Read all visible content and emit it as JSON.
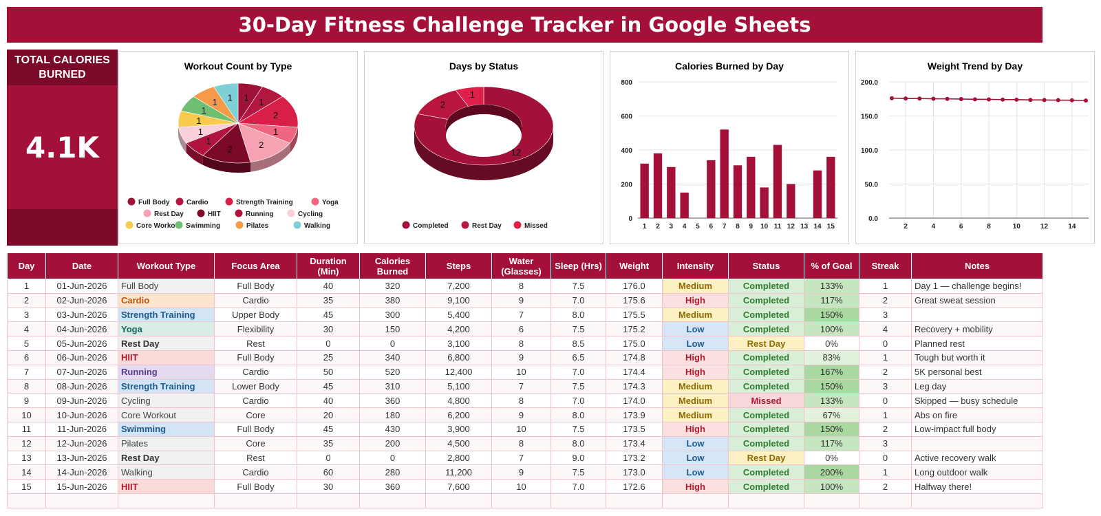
{
  "title": "30-Day Fitness Challenge Tracker in Google Sheets",
  "kpi": {
    "label": "TOTAL CALORIES BURNED",
    "value": "4.1K"
  },
  "colors": {
    "brand": "#a31139",
    "brand_dark": "#7a0a28"
  },
  "chart_data": [
    {
      "type": "pie",
      "title": "Workout Count by Type",
      "slices": [
        {
          "name": "Full Body",
          "value": 1,
          "color": "#9e1238"
        },
        {
          "name": "Cardio",
          "value": 1,
          "color": "#b3163e"
        },
        {
          "name": "Strength Training",
          "value": 2,
          "color": "#d81f48"
        },
        {
          "name": "Yoga",
          "value": 1,
          "color": "#ee6680"
        },
        {
          "name": "Rest Day",
          "value": 2,
          "color": "#f5a3b3"
        },
        {
          "name": "HIIT",
          "value": 2,
          "color": "#7a0a28"
        },
        {
          "name": "Running",
          "value": 1,
          "color": "#b0143c"
        },
        {
          "name": "Cycling",
          "value": 1,
          "color": "#f9d0d9"
        },
        {
          "name": "Core Workout",
          "value": 1,
          "color": "#f7cb4d"
        },
        {
          "name": "Swimming",
          "value": 1,
          "color": "#6fbf73"
        },
        {
          "name": "Pilates",
          "value": 1,
          "color": "#f59a48"
        },
        {
          "name": "Walking",
          "value": 1,
          "color": "#7fd0d4"
        }
      ]
    },
    {
      "type": "pie",
      "title": "Days by Status",
      "slices": [
        {
          "name": "Completed",
          "value": 12,
          "color": "#a31139"
        },
        {
          "name": "Rest Day",
          "value": 2,
          "color": "#b8163f"
        },
        {
          "name": "Missed",
          "value": 1,
          "color": "#e01e4a"
        }
      ]
    },
    {
      "type": "bar",
      "title": "Calories Burned by Day",
      "categories": [
        "1",
        "2",
        "3",
        "4",
        "5",
        "6",
        "7",
        "8",
        "9",
        "10",
        "11",
        "12",
        "13",
        "14",
        "15"
      ],
      "values": [
        320,
        380,
        300,
        150,
        0,
        340,
        520,
        310,
        360,
        180,
        430,
        200,
        0,
        280,
        360
      ],
      "ylim": [
        0,
        800
      ],
      "yticks": [
        "0",
        "200",
        "400",
        "600",
        "800"
      ],
      "color": "#a31139"
    },
    {
      "type": "line",
      "title": "Weight Trend by Day",
      "x": [
        1,
        2,
        3,
        4,
        5,
        6,
        7,
        8,
        9,
        10,
        11,
        12,
        13,
        14,
        15
      ],
      "values": [
        176.0,
        175.6,
        175.5,
        175.2,
        175.0,
        174.8,
        174.4,
        174.3,
        174.0,
        173.9,
        173.5,
        173.4,
        173.2,
        173.0,
        172.6
      ],
      "ylim": [
        0,
        200
      ],
      "yticks": [
        "0.0",
        "50.0",
        "100.0",
        "150.0",
        "200.0"
      ],
      "xticks": [
        "2",
        "4",
        "6",
        "8",
        "10",
        "12",
        "14"
      ],
      "color": "#a31139"
    }
  ],
  "table": {
    "headers": [
      "Day",
      "Date",
      "Workout Type",
      "Focus Area",
      "Duration (Min)",
      "Calories Burned",
      "Steps",
      "Water (Glasses)",
      "Sleep (Hrs)",
      "Weight",
      "Intensity",
      "Status",
      "% of Goal",
      "Streak",
      "Notes"
    ],
    "rows": [
      [
        "1",
        "01-Jun-2026",
        "Full Body",
        "Full Body",
        "40",
        "320",
        "7,200",
        "8",
        "7.5",
        "176.0",
        "Medium",
        "Completed",
        "133%",
        "1",
        "Day 1 — challenge begins!"
      ],
      [
        "2",
        "02-Jun-2026",
        "Cardio",
        "Cardio",
        "35",
        "380",
        "9,100",
        "9",
        "7.0",
        "175.6",
        "High",
        "Completed",
        "117%",
        "2",
        "Great sweat session"
      ],
      [
        "3",
        "03-Jun-2026",
        "Strength Training",
        "Upper Body",
        "45",
        "300",
        "5,400",
        "7",
        "8.0",
        "175.5",
        "Medium",
        "Completed",
        "150%",
        "3",
        ""
      ],
      [
        "4",
        "04-Jun-2026",
        "Yoga",
        "Flexibility",
        "30",
        "150",
        "4,200",
        "6",
        "7.5",
        "175.2",
        "Low",
        "Completed",
        "100%",
        "4",
        "Recovery + mobility"
      ],
      [
        "5",
        "05-Jun-2026",
        "Rest Day",
        "Rest",
        "0",
        "0",
        "3,100",
        "8",
        "8.5",
        "175.0",
        "Low",
        "Rest Day",
        "0%",
        "0",
        "Planned rest"
      ],
      [
        "6",
        "06-Jun-2026",
        "HIIT",
        "Full Body",
        "25",
        "340",
        "6,800",
        "9",
        "6.5",
        "174.8",
        "High",
        "Completed",
        "83%",
        "1",
        "Tough but worth it"
      ],
      [
        "7",
        "07-Jun-2026",
        "Running",
        "Cardio",
        "50",
        "520",
        "12,400",
        "10",
        "7.0",
        "174.4",
        "High",
        "Completed",
        "167%",
        "2",
        "5K personal best"
      ],
      [
        "8",
        "08-Jun-2026",
        "Strength Training",
        "Lower Body",
        "45",
        "310",
        "5,100",
        "7",
        "7.5",
        "174.3",
        "Medium",
        "Completed",
        "150%",
        "3",
        "Leg day"
      ],
      [
        "9",
        "09-Jun-2026",
        "Cycling",
        "Cardio",
        "40",
        "360",
        "4,800",
        "8",
        "7.0",
        "174.0",
        "Medium",
        "Missed",
        "133%",
        "0",
        "Skipped — busy schedule"
      ],
      [
        "10",
        "10-Jun-2026",
        "Core Workout",
        "Core",
        "20",
        "180",
        "6,200",
        "9",
        "8.0",
        "173.9",
        "Medium",
        "Completed",
        "67%",
        "1",
        "Abs on fire"
      ],
      [
        "11",
        "11-Jun-2026",
        "Swimming",
        "Full Body",
        "45",
        "430",
        "3,900",
        "10",
        "7.5",
        "173.5",
        "High",
        "Completed",
        "150%",
        "2",
        "Low-impact full body"
      ],
      [
        "12",
        "12-Jun-2026",
        "Pilates",
        "Core",
        "35",
        "200",
        "4,500",
        "8",
        "8.0",
        "173.4",
        "Low",
        "Completed",
        "117%",
        "3",
        ""
      ],
      [
        "13",
        "13-Jun-2026",
        "Rest Day",
        "Rest",
        "0",
        "0",
        "2,800",
        "7",
        "9.0",
        "173.2",
        "Low",
        "Rest Day",
        "0%",
        "0",
        "Active recovery walk"
      ],
      [
        "14",
        "14-Jun-2026",
        "Walking",
        "Cardio",
        "60",
        "280",
        "11,200",
        "9",
        "7.5",
        "173.0",
        "Low",
        "Completed",
        "200%",
        "1",
        "Long outdoor walk"
      ],
      [
        "15",
        "15-Jun-2026",
        "HIIT",
        "Full Body",
        "30",
        "360",
        "7,600",
        "10",
        "7.0",
        "172.6",
        "High",
        "Completed",
        "100%",
        "2",
        "Halfway there!"
      ]
    ]
  }
}
